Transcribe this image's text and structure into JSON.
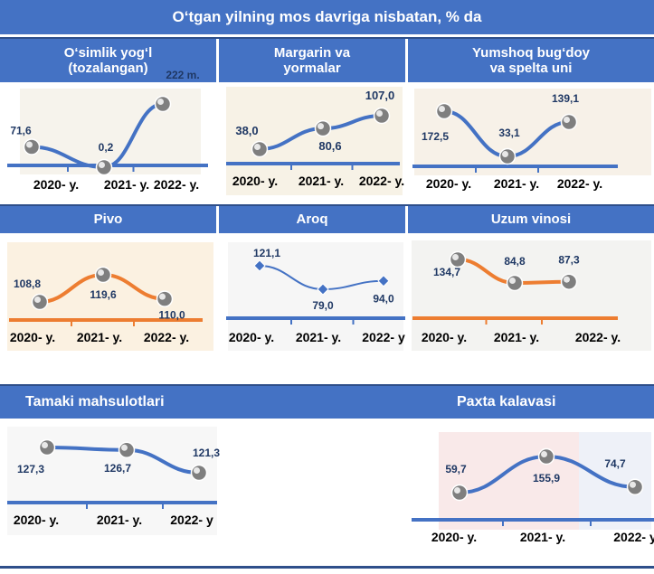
{
  "title": "O‘tgan yilning mos davriga nisbatan, % da",
  "colors": {
    "banner": "#4472c4",
    "blue": "#4472c4",
    "orange": "#ed7d31",
    "label": "#1f3864"
  },
  "chart_data": [
    {
      "type": "line",
      "title_lines": [
        "O‘simlik yog‘l",
        "(tozalangan)"
      ],
      "categories": [
        "2020- y.",
        "2021- y.",
        "2022- y."
      ],
      "value_labels": [
        "71,6",
        "0,2",
        "222  m."
      ],
      "values": [
        71.6,
        0.2,
        222
      ],
      "color": "blue",
      "marker": "sphere"
    },
    {
      "type": "line",
      "title_lines": [
        "Margarin va",
        "yormalar"
      ],
      "categories": [
        "2020- y.",
        "2021- y.",
        "2022- y."
      ],
      "value_labels": [
        "38,0",
        "80,6",
        "107,0"
      ],
      "values": [
        38.0,
        80.6,
        107.0
      ],
      "color": "blue",
      "marker": "sphere"
    },
    {
      "type": "line",
      "title_lines": [
        "Yumshoq bug‘doy",
        "va spelta uni"
      ],
      "categories": [
        "2020- y.",
        "2021- y.",
        "2022- y."
      ],
      "value_labels": [
        "172,5",
        "33,1",
        "139,1"
      ],
      "values": [
        172.5,
        33.1,
        139.1
      ],
      "color": "blue",
      "marker": "sphere"
    },
    {
      "type": "line",
      "title_lines": [
        "Pivo"
      ],
      "categories": [
        "2020- y.",
        "2021- y.",
        "2022- y."
      ],
      "value_labels": [
        "108,8",
        "119,6",
        "110,0"
      ],
      "values": [
        108.8,
        119.6,
        110.0
      ],
      "color": "orange",
      "marker": "sphere"
    },
    {
      "type": "line",
      "title_lines": [
        "Aroq"
      ],
      "categories": [
        "2020- y.",
        "2021- y.",
        "2022- y"
      ],
      "value_labels": [
        "121,1",
        "79,0",
        "94,0"
      ],
      "values": [
        121.1,
        79.0,
        94.0
      ],
      "color": "blue",
      "marker": "diamond"
    },
    {
      "type": "line",
      "title_lines": [
        "Uzum vinosi"
      ],
      "categories": [
        "2020- y.",
        "2021- y.",
        "2022- y."
      ],
      "value_labels": [
        "134,7",
        "84,8",
        "87,3"
      ],
      "values": [
        134.7,
        84.8,
        87.3
      ],
      "color": "orange",
      "marker": "sphere"
    },
    {
      "type": "line",
      "title_lines": [
        "Tamaki mahsulotlari"
      ],
      "categories": [
        "2020- y.",
        "2021- y.",
        "2022- y"
      ],
      "value_labels": [
        "127,3",
        "126,7",
        "121,3"
      ],
      "values": [
        127.3,
        126.7,
        121.3
      ],
      "color": "blue",
      "marker": "sphere"
    },
    {
      "type": "line",
      "title_lines": [
        "Paxta kalavasi"
      ],
      "categories": [
        "2020- y.",
        "2021- y.",
        "2022- y"
      ],
      "value_labels": [
        "59,7",
        "155,9",
        "74,7"
      ],
      "values": [
        59.7,
        155.9,
        74.7
      ],
      "color": "blue",
      "marker": "sphere"
    }
  ]
}
